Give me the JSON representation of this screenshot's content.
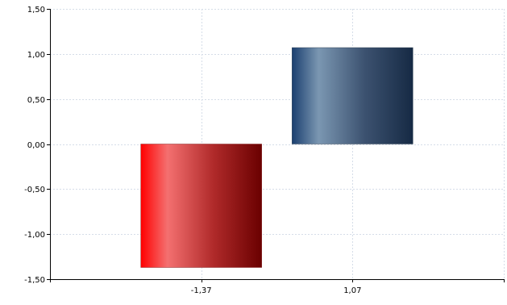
{
  "chart_data": {
    "type": "bar",
    "categories": [
      "-1,37",
      "1,07"
    ],
    "values": [
      -1.37,
      1.07
    ],
    "ylim": [
      -1.5,
      1.5
    ],
    "yticks": [
      1.5,
      1.0,
      0.5,
      0.0,
      -0.5,
      -1.0,
      -1.5
    ],
    "ytick_labels": [
      "1,50",
      "1,00",
      "0,50",
      "0,00",
      "-0,50",
      "-1,00",
      "-1,50"
    ],
    "grid": true,
    "title": "",
    "xlabel": "",
    "ylabel": "",
    "colors": {
      "negative_bar": [
        "#ff0000",
        "#f47070",
        "#b02a2a",
        "#6a0000"
      ],
      "positive_bar": [
        "#1b3f70",
        "#7b97b2",
        "#3c5270",
        "#162a44"
      ],
      "grid": "#d5dde8",
      "axis": "#000000"
    }
  }
}
